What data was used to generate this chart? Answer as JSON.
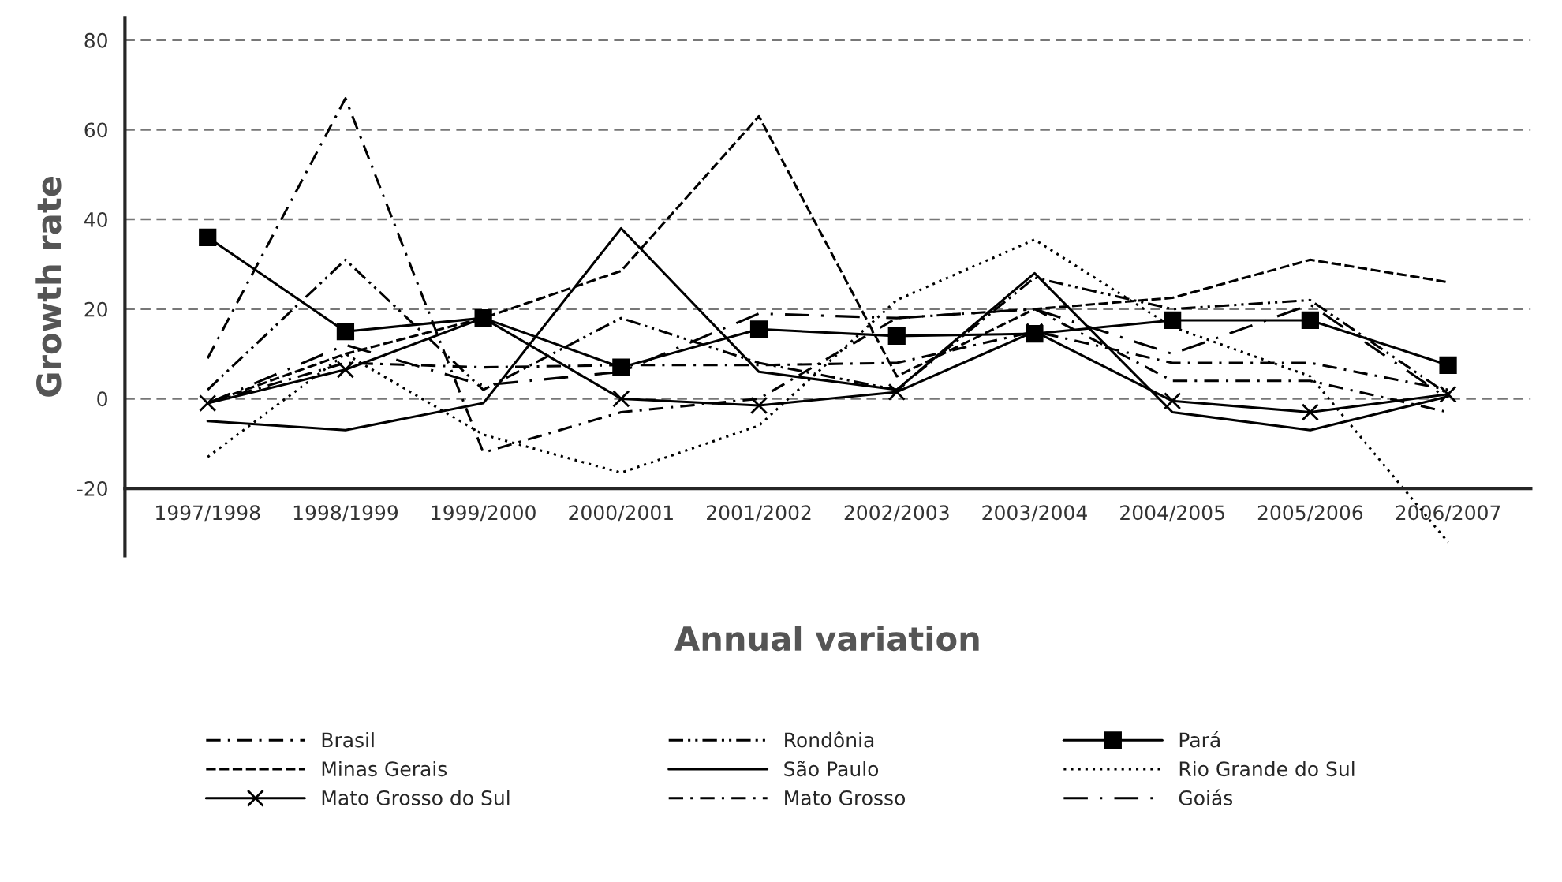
{
  "chart_data": {
    "type": "line",
    "xlabel": "Annual variation",
    "ylabel": "Growth rate",
    "categories": [
      "1997/1998",
      "1998/1999",
      "1999/2000",
      "2000/2001",
      "2001/2002",
      "2002/2003",
      "2003/2004",
      "2004/2005",
      "2005/2006",
      "2006/2007"
    ],
    "ylim": [
      -35,
      85
    ],
    "yticks": [
      -20,
      0,
      20,
      40,
      60,
      80
    ],
    "grid": "y",
    "legend": "bottom",
    "series": [
      {
        "name": "Brasil",
        "color": "#000000",
        "line_style": "dashdot",
        "marker": "none",
        "values": [
          -1,
          8,
          7,
          7.5,
          7.5,
          8,
          15,
          8,
          8,
          2
        ]
      },
      {
        "name": "Minas Gerais",
        "color": "#000000",
        "line_style": "dashed",
        "marker": "none",
        "values": [
          -1,
          10,
          18,
          28.5,
          63,
          5,
          20,
          22.5,
          31,
          26
        ]
      },
      {
        "name": "Mato Grosso do Sul",
        "color": "#000000",
        "line_style": "solid",
        "marker": "cross",
        "values": [
          -1,
          6.5,
          18,
          0,
          -1.5,
          1.5,
          15,
          -0.5,
          -3,
          1
        ]
      },
      {
        "name": "Rondônia",
        "color": "#000000",
        "line_style": "dashdotdot",
        "marker": "none",
        "values": [
          2,
          31,
          2,
          18,
          8,
          2,
          27,
          20,
          22,
          1
        ]
      },
      {
        "name": "São Paulo",
        "color": "#000000",
        "line_style": "solid",
        "marker": "none",
        "values": [
          -5,
          -7,
          -1,
          38,
          6,
          2,
          28,
          -3,
          -7,
          0.5
        ]
      },
      {
        "name": "Mato Grosso",
        "color": "#000000",
        "line_style": "dashdot",
        "marker": "none",
        "values": [
          9,
          67,
          -12,
          -3,
          0,
          18,
          20,
          4,
          4,
          -3
        ]
      },
      {
        "name": "Pará",
        "color": "#000000",
        "line_style": "solid",
        "marker": "square",
        "values": [
          36,
          15,
          18,
          7,
          15.5,
          14,
          14.5,
          17.5,
          17.5,
          7.5
        ]
      },
      {
        "name": "Rio Grande do Sul",
        "color": "#000000",
        "line_style": "dotted",
        "marker": "none",
        "values": [
          -13,
          10,
          -8,
          -16.5,
          -6,
          22,
          35.5,
          16,
          5,
          -32
        ]
      },
      {
        "name": "Goiás",
        "color": "#000000",
        "line_style": "longdashdot",
        "marker": "none",
        "values": [
          -1,
          12,
          3,
          6,
          19,
          18,
          20,
          10,
          21,
          0
        ]
      }
    ]
  }
}
